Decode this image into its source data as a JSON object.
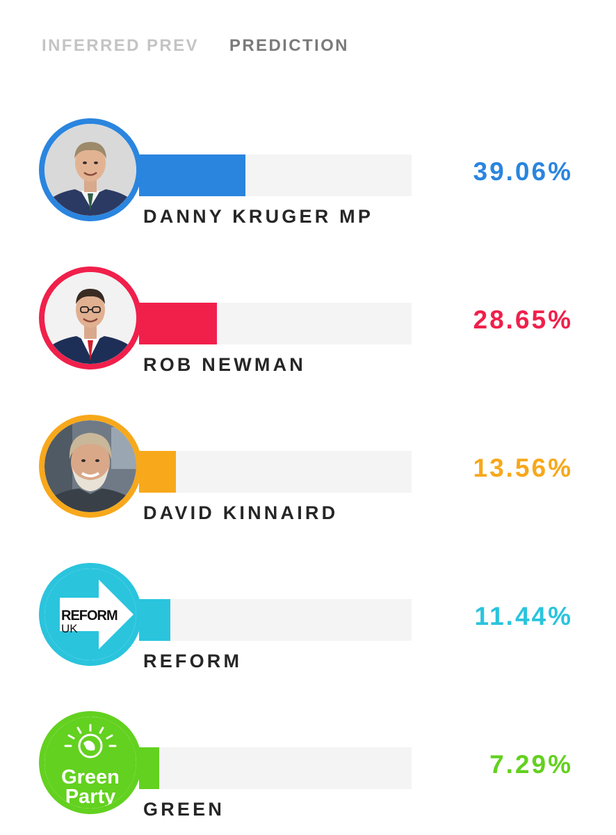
{
  "tabs": [
    {
      "label": "INFERRED PREV",
      "active": false
    },
    {
      "label": "PREDICTION",
      "active": true
    }
  ],
  "candidates": [
    {
      "name": "DANNY KRUGER MP",
      "percent": "39.06%",
      "share": 39.06,
      "color": "#2a85df",
      "avatar": "candidate-photo"
    },
    {
      "name": "ROB NEWMAN",
      "percent": "28.65%",
      "share": 28.65,
      "color": "#f0204b",
      "avatar": "candidate-photo"
    },
    {
      "name": "DAVID KINNAIRD",
      "percent": "13.56%",
      "share": 13.56,
      "color": "#f7a81b",
      "avatar": "candidate-photo"
    },
    {
      "name": "REFORM",
      "percent": "11.44%",
      "share": 11.44,
      "color": "#2ac4dd",
      "avatar": "reform-uk-logo",
      "logo_text": [
        "REFORM",
        "UK"
      ]
    },
    {
      "name": "GREEN",
      "percent": "7.29%",
      "share": 7.29,
      "color": "#63d11f",
      "avatar": "green-party-logo",
      "logo_text": [
        "Green",
        "Party"
      ]
    }
  ]
}
